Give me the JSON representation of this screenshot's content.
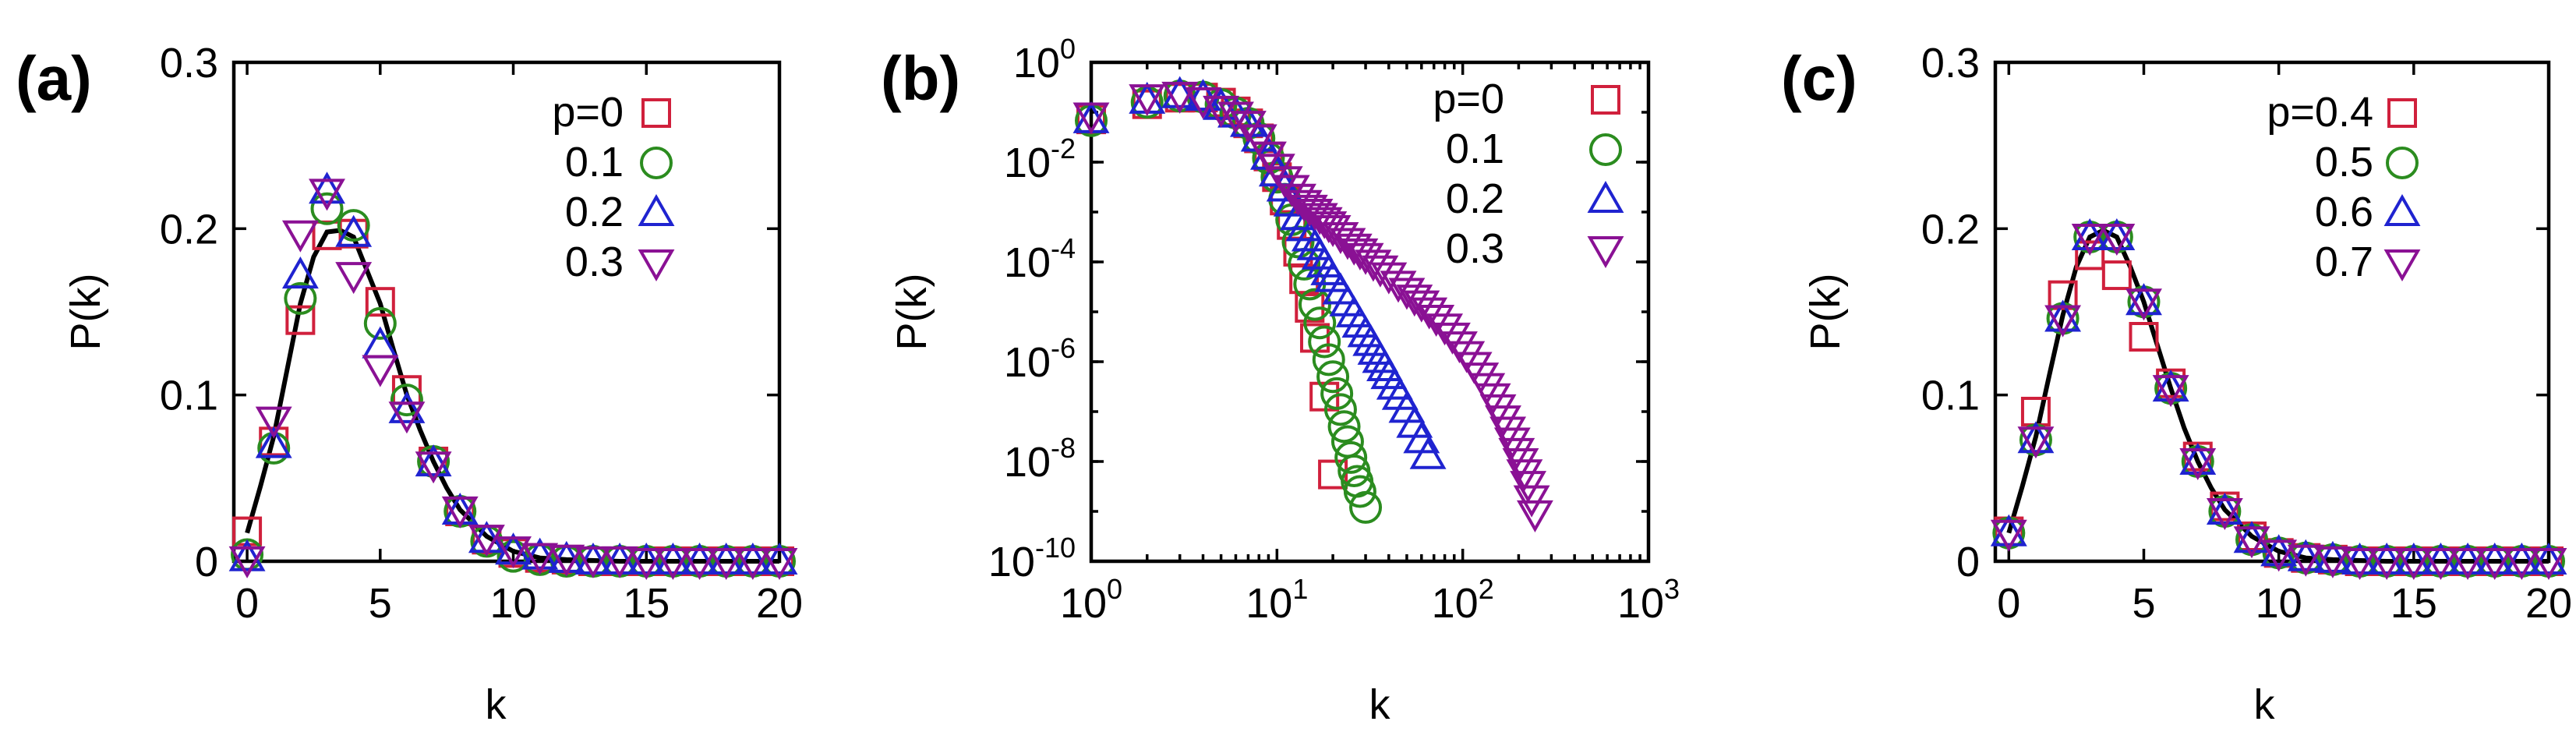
{
  "colors": {
    "square": "#d0203c",
    "circle": "#2b8c1f",
    "triangle_up": "#1f23d0",
    "triangle_down": "#8a1194"
  },
  "chart_data": [
    {
      "id": "a",
      "panel_label": "(a)",
      "type": "scatter",
      "xscale": "linear",
      "yscale": "linear",
      "xlim": [
        -0.5,
        20
      ],
      "ylim": [
        0,
        0.3
      ],
      "xticks": [
        0,
        5,
        10,
        15,
        20
      ],
      "xtick_labels": [
        "0",
        "5",
        "10",
        "15",
        "20"
      ],
      "yticks": [
        0,
        0.1,
        0.2,
        0.3
      ],
      "ytick_labels": [
        "0",
        "0.1",
        "0.2",
        "0.3"
      ],
      "xlabel": "k",
      "ylabel": "P(k)",
      "legend_position": "top-right",
      "legend_title": "",
      "fit_curve": {
        "x": [
          0,
          0.5,
          1,
          1.5,
          2,
          2.5,
          3,
          3.5,
          4,
          4.5,
          5,
          5.5,
          6,
          6.5,
          7,
          7.5,
          8,
          9,
          10,
          11,
          12,
          14,
          16,
          18,
          20
        ],
        "y": [
          0.017,
          0.045,
          0.075,
          0.115,
          0.155,
          0.183,
          0.198,
          0.199,
          0.195,
          0.175,
          0.155,
          0.127,
          0.1,
          0.079,
          0.06,
          0.044,
          0.031,
          0.015,
          0.006,
          0.002,
          0.001,
          0.0,
          0.0,
          0.0,
          0.0
        ]
      },
      "series": [
        {
          "name": "p=0",
          "marker": "square",
          "x": [
            0,
            1,
            2,
            3,
            4,
            5,
            6,
            7,
            8,
            9,
            10,
            11,
            12,
            13,
            14,
            15,
            16,
            17,
            18,
            19,
            20
          ],
          "y": [
            0.018,
            0.072,
            0.145,
            0.196,
            0.197,
            0.156,
            0.103,
            0.06,
            0.03,
            0.013,
            0.005,
            0.002,
            0.001,
            0,
            0,
            0,
            0,
            0,
            0,
            0,
            0
          ]
        },
        {
          "name": "0.1",
          "marker": "circle",
          "x": [
            0,
            1,
            2,
            3,
            4,
            5,
            6,
            7,
            8,
            9,
            10,
            11,
            12,
            13,
            14,
            15,
            16,
            17,
            18,
            19,
            20
          ],
          "y": [
            0.004,
            0.068,
            0.158,
            0.212,
            0.202,
            0.143,
            0.097,
            0.06,
            0.03,
            0.012,
            0.003,
            0.001,
            0,
            0,
            0,
            0,
            0,
            0,
            0,
            0,
            0
          ]
        },
        {
          "name": "0.2",
          "marker": "triangle_up",
          "x": [
            0,
            1,
            2,
            3,
            4,
            5,
            6,
            7,
            8,
            9,
            10,
            11,
            12,
            13,
            14,
            15,
            16,
            17,
            18,
            19,
            20
          ],
          "y": [
            0.002,
            0.07,
            0.172,
            0.223,
            0.197,
            0.13,
            0.091,
            0.059,
            0.03,
            0.013,
            0.006,
            0.003,
            0.001,
            0,
            0,
            0,
            0,
            0,
            0,
            0,
            0
          ]
        },
        {
          "name": "0.3",
          "marker": "triangle_down",
          "x": [
            0,
            1,
            2,
            3,
            4,
            5,
            6,
            7,
            8,
            9,
            10,
            11,
            12,
            13,
            14,
            15,
            16,
            17,
            18,
            19,
            20
          ],
          "y": [
            0.001,
            0.085,
            0.197,
            0.222,
            0.172,
            0.116,
            0.088,
            0.058,
            0.031,
            0.014,
            0.007,
            0.003,
            0.002,
            0.001,
            0.001,
            0,
            0,
            0,
            0,
            0,
            0
          ]
        }
      ]
    },
    {
      "id": "b",
      "panel_label": "(b)",
      "type": "scatter",
      "xscale": "log",
      "yscale": "log",
      "xlim": [
        1,
        1000
      ],
      "ylim": [
        1e-10,
        1
      ],
      "xticks": [
        1,
        10,
        100,
        1000
      ],
      "xtick_labels": [
        [
          "10",
          "0"
        ],
        [
          "10",
          "1"
        ],
        [
          "10",
          "2"
        ],
        [
          "10",
          "3"
        ]
      ],
      "yticks": [
        1,
        0.01,
        0.0001,
        1e-06,
        1e-08,
        1e-10
      ],
      "ytick_labels": [
        [
          "10",
          "0"
        ],
        [
          "10",
          "-2"
        ],
        [
          "10",
          "-4"
        ],
        [
          "10",
          "-6"
        ],
        [
          "10",
          "-8"
        ],
        [
          "10",
          "-10"
        ]
      ],
      "xlabel": "k",
      "ylabel": "P(k)",
      "legend_position": "top-right",
      "series": [
        {
          "name": "p=0",
          "marker": "square",
          "x": [
            1,
            2,
            3,
            4,
            5,
            6,
            7,
            8,
            9,
            10,
            11,
            12,
            13,
            14,
            15,
            16,
            18,
            20
          ],
          "y": [
            0.072,
            0.145,
            0.196,
            0.197,
            0.156,
            0.104,
            0.06,
            0.03,
            0.013,
            0.005,
            0.0017,
            0.00055,
            0.00016,
            4.5e-05,
            1.2e-05,
            3e-06,
            2e-07,
            5.5e-09
          ]
        },
        {
          "name": "0.1",
          "marker": "circle",
          "x": [
            1,
            2,
            3,
            4,
            5,
            6,
            7,
            8,
            9,
            10,
            11,
            12,
            13,
            14,
            15,
            16,
            17,
            18,
            19,
            20,
            21,
            22,
            23,
            24,
            25,
            26,
            27,
            28,
            30
          ],
          "y": [
            0.068,
            0.158,
            0.212,
            0.202,
            0.143,
            0.097,
            0.06,
            0.03,
            0.012,
            0.005,
            0.0018,
            0.0007,
            0.00025,
            9e-05,
            3.6e-05,
            1.4e-05,
            6e-06,
            2.5e-06,
            1.1e-06,
            5e-07,
            2.3e-07,
            1.1e-07,
            5e-08,
            2.5e-08,
            1.2e-08,
            6.5e-09,
            4e-09,
            2.5e-09,
            1.2e-09
          ]
        },
        {
          "name": "0.2",
          "marker": "triangle_up",
          "x": [
            1,
            2,
            3,
            4,
            5,
            6,
            7,
            8,
            9,
            10,
            11,
            12,
            13,
            14,
            15,
            16,
            17,
            18,
            19,
            20,
            22,
            24,
            26,
            28,
            30,
            32,
            34,
            36,
            38,
            40,
            43,
            46,
            50,
            55,
            60,
            65
          ],
          "y": [
            0.07,
            0.172,
            0.223,
            0.197,
            0.13,
            0.091,
            0.059,
            0.03,
            0.013,
            0.006,
            0.003,
            0.0015,
            0.0008,
            0.00048,
            0.0003,
            0.0002,
            0.00013,
            9e-05,
            6.3e-05,
            4.6e-05,
            2.6e-05,
            1.5e-05,
            9e-06,
            5.6e-06,
            3.6e-06,
            2.4e-06,
            1.6e-06,
            1.1e-06,
            7.5e-07,
            5.2e-07,
            3.2e-07,
            2e-07,
            1.1e-07,
            5.5e-08,
            2.7e-08,
            1.3e-08
          ]
        },
        {
          "name": "0.3",
          "marker": "triangle_down",
          "x": [
            1,
            2,
            3,
            4,
            5,
            6,
            7,
            8,
            9,
            10,
            11,
            12,
            13,
            14,
            15,
            16,
            17,
            18,
            19,
            20,
            22,
            24,
            26,
            28,
            30,
            33,
            36,
            40,
            45,
            50,
            55,
            60,
            66,
            72,
            80,
            88,
            96,
            105,
            115,
            125,
            135,
            145,
            155,
            165,
            175,
            185,
            195,
            205,
            215,
            225,
            235,
            245
          ],
          "y": [
            0.085,
            0.197,
            0.222,
            0.172,
            0.116,
            0.088,
            0.058,
            0.031,
            0.014,
            0.008,
            0.0045,
            0.003,
            0.002,
            0.0015,
            0.0012,
            0.001,
            0.00082,
            0.00068,
            0.00056,
            0.00047,
            0.00034,
            0.00026,
            0.0002,
            0.00016,
            0.00013,
            9.5e-05,
            7.3e-05,
            5.3e-05,
            3.6e-05,
            2.6e-05,
            1.9e-05,
            1.45e-05,
            1.05e-05,
            7.5e-06,
            5e-06,
            3.3e-06,
            2.2e-06,
            1.4e-06,
            8.5e-07,
            5.2e-07,
            3.2e-07,
            2e-07,
            1.2e-07,
            7.2e-08,
            4.3e-08,
            2.6e-08,
            1.6e-08,
            1e-08,
            6e-09,
            3.5e-09,
            1.8e-09,
            9e-10
          ]
        }
      ]
    },
    {
      "id": "c",
      "panel_label": "(c)",
      "type": "scatter",
      "xscale": "linear",
      "yscale": "linear",
      "xlim": [
        -0.5,
        20
      ],
      "ylim": [
        0,
        0.3
      ],
      "xticks": [
        0,
        5,
        10,
        15,
        20
      ],
      "xtick_labels": [
        "0",
        "5",
        "10",
        "15",
        "20"
      ],
      "yticks": [
        0,
        0.1,
        0.2,
        0.3
      ],
      "ytick_labels": [
        "0",
        "0.1",
        "0.2",
        "0.3"
      ],
      "xlabel": "k",
      "ylabel": "P(k)",
      "legend_position": "top-right",
      "fit_curve": {
        "x": [
          0,
          0.5,
          1,
          1.5,
          2,
          2.5,
          3,
          3.5,
          4,
          4.5,
          5,
          5.5,
          6,
          6.5,
          7,
          7.5,
          8,
          9,
          10,
          11,
          12,
          14,
          16,
          18,
          20
        ],
        "y": [
          0.017,
          0.045,
          0.075,
          0.112,
          0.148,
          0.177,
          0.195,
          0.199,
          0.195,
          0.177,
          0.156,
          0.13,
          0.104,
          0.08,
          0.06,
          0.044,
          0.031,
          0.015,
          0.006,
          0.002,
          0.001,
          0.0,
          0.0,
          0.0,
          0.0
        ]
      },
      "series": [
        {
          "name": "p=0.4",
          "marker": "square",
          "x": [
            0,
            1,
            2,
            3,
            4,
            5,
            6,
            7,
            8,
            9,
            10,
            11,
            12,
            13,
            14,
            15,
            16,
            17,
            18,
            19,
            20
          ],
          "y": [
            0.018,
            0.09,
            0.16,
            0.184,
            0.172,
            0.135,
            0.107,
            0.063,
            0.033,
            0.015,
            0.005,
            0.002,
            0.001,
            0,
            0,
            0,
            0,
            0,
            0,
            0,
            0
          ]
        },
        {
          "name": "0.5",
          "marker": "circle",
          "x": [
            0,
            1,
            2,
            3,
            4,
            5,
            6,
            7,
            8,
            9,
            10,
            11,
            12,
            13,
            14,
            15,
            16,
            17,
            18,
            19,
            20
          ],
          "y": [
            0.017,
            0.073,
            0.146,
            0.195,
            0.195,
            0.156,
            0.104,
            0.06,
            0.03,
            0.013,
            0.005,
            0.002,
            0.001,
            0,
            0,
            0,
            0,
            0,
            0,
            0,
            0
          ]
        },
        {
          "name": "0.6",
          "marker": "triangle_up",
          "x": [
            0,
            1,
            2,
            3,
            4,
            5,
            6,
            7,
            8,
            9,
            10,
            11,
            12,
            13,
            14,
            15,
            16,
            17,
            18,
            19,
            20
          ],
          "y": [
            0.017,
            0.073,
            0.146,
            0.195,
            0.195,
            0.156,
            0.104,
            0.06,
            0.03,
            0.013,
            0.005,
            0.002,
            0.001,
            0,
            0,
            0,
            0,
            0,
            0,
            0,
            0
          ]
        },
        {
          "name": "0.7",
          "marker": "triangle_down",
          "x": [
            0,
            1,
            2,
            3,
            4,
            5,
            6,
            7,
            8,
            9,
            10,
            11,
            12,
            13,
            14,
            15,
            16,
            17,
            18,
            19,
            20
          ],
          "y": [
            0.017,
            0.073,
            0.146,
            0.195,
            0.195,
            0.156,
            0.104,
            0.06,
            0.03,
            0.013,
            0.005,
            0.002,
            0.001,
            0,
            0,
            0,
            0,
            0,
            0,
            0,
            0
          ]
        }
      ]
    }
  ]
}
